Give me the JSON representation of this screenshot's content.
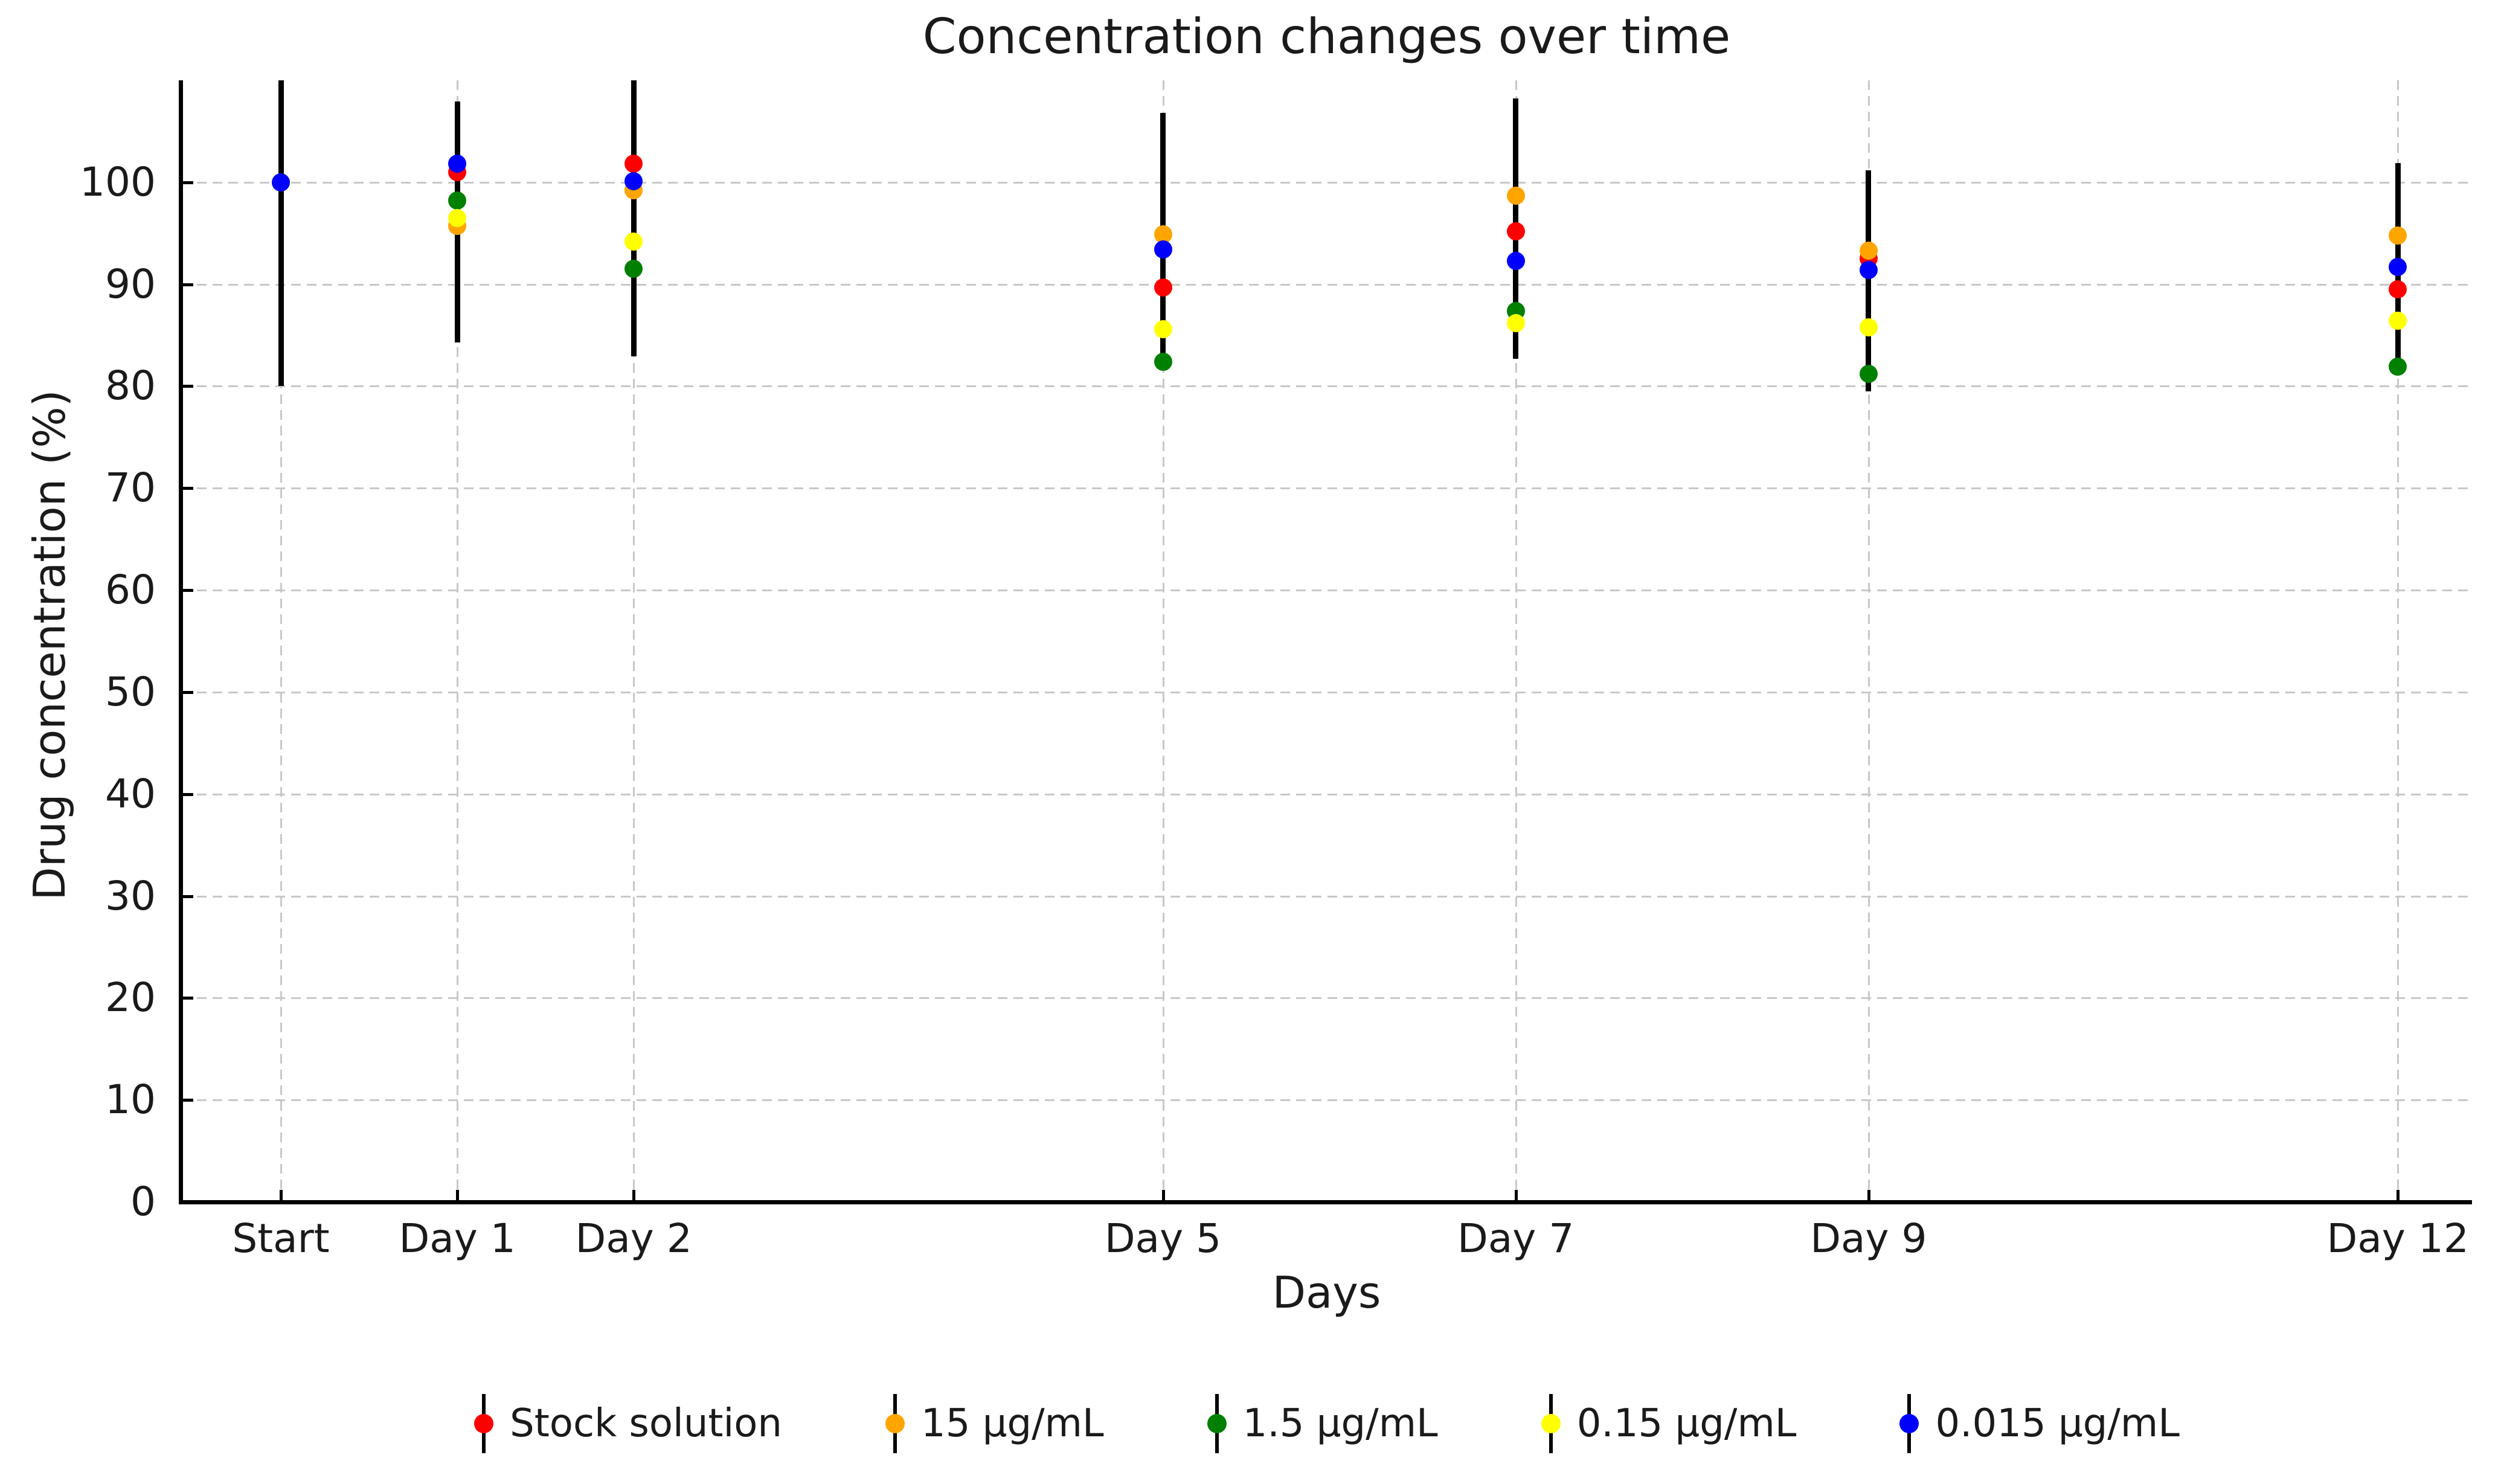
{
  "chart_data": {
    "type": "scatter",
    "title": "Concentration changes over time",
    "xlabel": "Days",
    "ylabel": "Drug concentration (%)",
    "x_categories": [
      "Start",
      "Day 1",
      "Day 2",
      "Day 5",
      "Day 7",
      "Day 9",
      "Day 12"
    ],
    "x_days": [
      0,
      1,
      2,
      5,
      7,
      9,
      12
    ],
    "ylim": [
      0,
      110
    ],
    "yticks": [
      0,
      10,
      20,
      30,
      40,
      50,
      60,
      70,
      80,
      90,
      100
    ],
    "grid": "dashed, both axes, light gray",
    "legend_position": "bottom center",
    "marker": "circle",
    "error_bar_color": "#000000",
    "series": [
      {
        "name": "Stock solution",
        "color": "#ff0000",
        "values": [
          100,
          101.0,
          101.8,
          89.7,
          95.2,
          92.5,
          89.5
        ]
      },
      {
        "name": "15 µg/mL",
        "color": "#ffa500",
        "values": [
          100,
          95.7,
          99.2,
          94.9,
          98.7,
          93.3,
          94.8
        ]
      },
      {
        "name": "1.5 µg/mL",
        "color": "#008000",
        "values": [
          100,
          98.2,
          91.5,
          82.4,
          87.4,
          81.2,
          81.9
        ]
      },
      {
        "name": "0.15 µg/mL",
        "color": "#ffff00",
        "values": [
          100,
          96.5,
          94.2,
          85.6,
          86.2,
          85.8,
          86.4
        ]
      },
      {
        "name": "0.015 µg/mL",
        "color": "#0000ff",
        "values": [
          100,
          101.8,
          100.1,
          93.4,
          92.3,
          91.4,
          91.7
        ]
      }
    ],
    "error_bar_extents": [
      {
        "x": "Start",
        "day": 0,
        "low": 80.0,
        "high": 110,
        "clipped_top": true
      },
      {
        "x": "Day 1",
        "day": 1,
        "low": 84.3,
        "high": 107.9
      },
      {
        "x": "Day 2",
        "day": 2,
        "low": 82.9,
        "high": 110,
        "clipped_top": true
      },
      {
        "x": "Day 5",
        "day": 5,
        "low": 82.0,
        "high": 106.8
      },
      {
        "x": "Day 7",
        "day": 7,
        "low": 82.7,
        "high": 108.2
      },
      {
        "x": "Day 9",
        "day": 9,
        "low": 79.5,
        "high": 101.2
      },
      {
        "x": "Day 12",
        "day": 12,
        "low": 81.5,
        "high": 101.9
      }
    ]
  }
}
